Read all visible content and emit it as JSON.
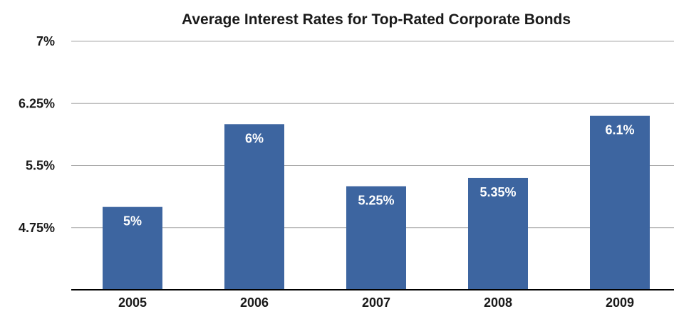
{
  "chart_data": {
    "type": "bar",
    "title": "Average Interest Rates for Top-Rated Corporate Bonds",
    "xlabel": "",
    "ylabel": "",
    "categories": [
      "2005",
      "2006",
      "2007",
      "2008",
      "2009"
    ],
    "values": [
      5,
      6,
      5.25,
      5.35,
      6.1
    ],
    "data_labels": [
      "5%",
      "6%",
      "5.25%",
      "5.35%",
      "6.1%"
    ],
    "ylim": [
      4,
      7
    ],
    "yticks": [
      4.75,
      5.5,
      6.25,
      7
    ],
    "ytick_labels": [
      "4.75%",
      "5.5%",
      "6.25%",
      "7%"
    ],
    "grid": true,
    "legend": "none",
    "bar_color": "#3d65a0"
  }
}
